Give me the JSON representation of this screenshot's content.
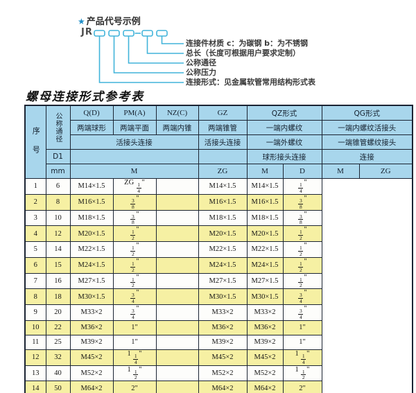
{
  "diagram": {
    "star": "★",
    "title": "产品代号示例",
    "prefix": "JR",
    "labels": [
      "连接件材质  c：为碳钢  b：为不锈钢",
      "总长（长度可根据用户要求定制）",
      "公称通径",
      "公称压力",
      "连接形式：见金属软管常用结构形式表"
    ]
  },
  "table": {
    "title": "螺母连接形式参考表",
    "header": {
      "seq": "序号",
      "dn": "公称通径",
      "d1": "D1",
      "mm": "mm",
      "q_code": "Q(D)",
      "pm_code": "PM(A)",
      "nz_code": "NZ(C)",
      "gz_code": "GZ",
      "qz_title": "QZ形式",
      "qg_title": "QG形式",
      "q_desc": "两端球形",
      "pm_desc": "两端平面",
      "nz_desc": "两端内锥",
      "gz_desc": "两端锥管",
      "qz_desc1": "一端内螺纹",
      "qg_desc1": "一端内螺纹活接头",
      "qpn_conn": "活接头连接",
      "gz_conn": "活接头连接",
      "qz_desc2": "一端外螺纹",
      "qg_desc2": "一端锥管螺纹接头",
      "qz_desc3": "球形接头连接",
      "qg_desc3": "连接",
      "u_m1": "M",
      "u_zg1": "ZG",
      "u_m2": "M",
      "u_d": "D",
      "u_m3": "M",
      "u_zg2": "ZG"
    },
    "rows": [
      {
        "seq": "1",
        "dn": "6",
        "m": "M14×1.5",
        "gz": "ZG 1/4\"",
        "qz_m": "",
        "qz_d": "M14×1.5",
        "qg_m": "M14×1.5",
        "qg_zg": "1/4\""
      },
      {
        "seq": "2",
        "dn": "8",
        "m": "M16×1.5",
        "gz": "3/8\"",
        "qz_m": "",
        "qz_d": "M16×1.5",
        "qg_m": "M16×1.5",
        "qg_zg": "3/8\""
      },
      {
        "seq": "3",
        "dn": "10",
        "m": "M18×1.5",
        "gz": "3/8\"",
        "qz_m": "",
        "qz_d": "M18×1.5",
        "qg_m": "M18×1.5",
        "qg_zg": "3/8\""
      },
      {
        "seq": "4",
        "dn": "12",
        "m": "M20×1.5",
        "gz": "1/2\"",
        "qz_m": "",
        "qz_d": "M20×1.5",
        "qg_m": "M20×1.5",
        "qg_zg": "1/2\""
      },
      {
        "seq": "5",
        "dn": "14",
        "m": "M22×1.5",
        "gz": "1/2\"",
        "qz_m": "",
        "qz_d": "M22×1.5",
        "qg_m": "M22×1.5",
        "qg_zg": "1/2\""
      },
      {
        "seq": "6",
        "dn": "15",
        "m": "M24×1.5",
        "gz": "1/2\"",
        "qz_m": "",
        "qz_d": "M24×1.5",
        "qg_m": "M24×1.5",
        "qg_zg": "1/2\""
      },
      {
        "seq": "7",
        "dn": "16",
        "m": "M27×1.5",
        "gz": "1/2\"",
        "qz_m": "",
        "qz_d": "M27×1.5",
        "qg_m": "M27×1.5",
        "qg_zg": "1/2\""
      },
      {
        "seq": "8",
        "dn": "18",
        "m": "M30×1.5",
        "gz": "3/4\"",
        "qz_m": "",
        "qz_d": "M30×1.5",
        "qg_m": "M30×1.5",
        "qg_zg": "3/4\""
      },
      {
        "seq": "9",
        "dn": "20",
        "m": "M33×2",
        "gz": "3/4\"",
        "qz_m": "",
        "qz_d": "M33×2",
        "qg_m": "M33×2",
        "qg_zg": "3/4\""
      },
      {
        "seq": "10",
        "dn": "22",
        "m": "M36×2",
        "gz": "1\"",
        "qz_m": "",
        "qz_d": "M36×2",
        "qg_m": "M36×2",
        "qg_zg": "1\""
      },
      {
        "seq": "11",
        "dn": "25",
        "m": "M39×2",
        "gz": "1\"",
        "qz_m": "",
        "qz_d": "M39×2",
        "qg_m": "M39×2",
        "qg_zg": "1\""
      },
      {
        "seq": "12",
        "dn": "32",
        "m": "M45×2",
        "gz": "1 1/4\"",
        "qz_m": "",
        "qz_d": "M45×2",
        "qg_m": "M45×2",
        "qg_zg": "1 1/4\""
      },
      {
        "seq": "13",
        "dn": "40",
        "m": "M52×2",
        "gz": "1 1/2\"",
        "qz_m": "",
        "qz_d": "M52×2",
        "qg_m": "M52×2",
        "qg_zg": "1 1/2\""
      },
      {
        "seq": "14",
        "dn": "50",
        "m": "M64×2",
        "gz": "2\"",
        "qz_m": "",
        "qz_d": "M64×2",
        "qg_m": "M64×2",
        "qg_zg": "2\""
      }
    ]
  },
  "colors": {
    "accent_cyan": "#41b4da",
    "header_blue": "#a8d6ec",
    "row_yellow": "#f6f0a3",
    "border_dark": "#1b2433",
    "star_blue": "#1f8ec8"
  }
}
